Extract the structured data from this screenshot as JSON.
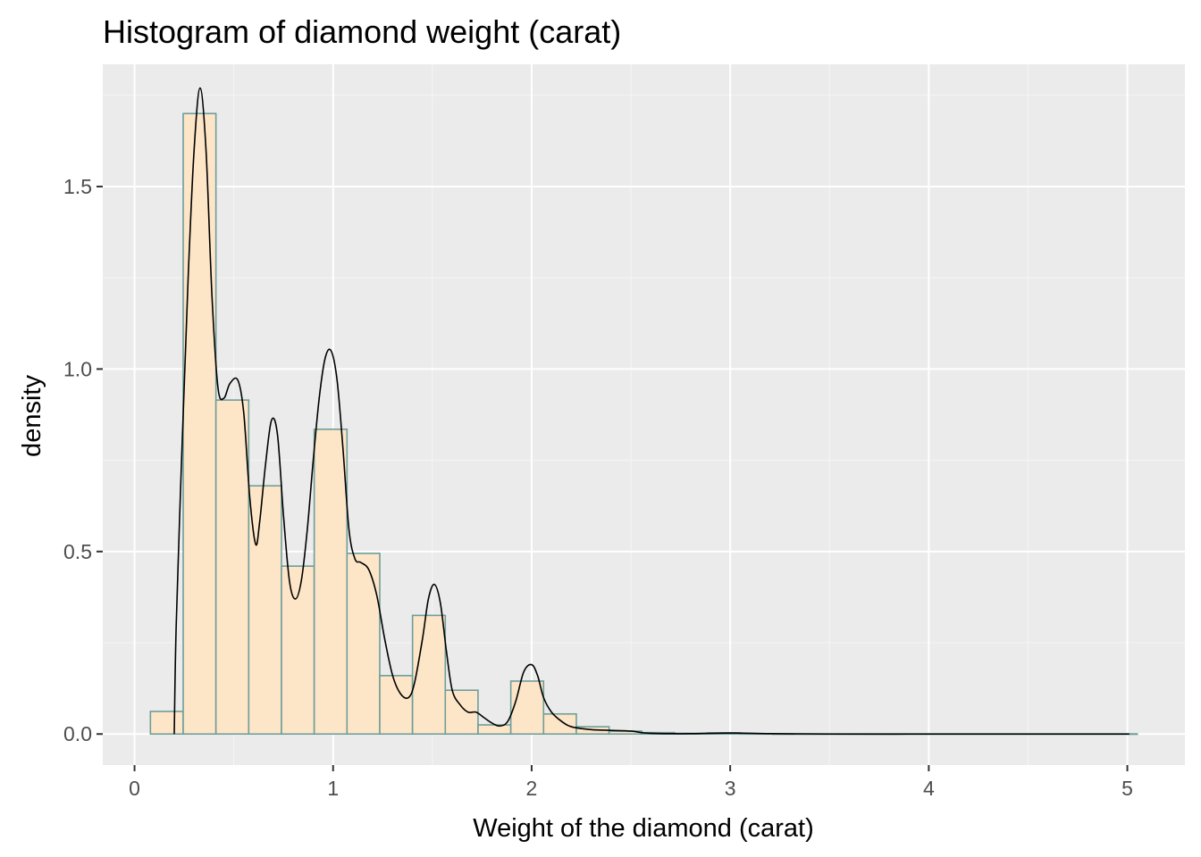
{
  "chart_data": {
    "type": "bar",
    "title": "Histogram of diamond weight (carat)",
    "xlabel": "Weight of the diamond (carat)",
    "ylabel": "density",
    "xlim": [
      -0.16,
      5.29
    ],
    "ylim": [
      -0.085,
      1.835
    ],
    "x_ticks": [
      0,
      1,
      2,
      3,
      4,
      5
    ],
    "x_tick_labels": [
      "0",
      "1",
      "2",
      "3",
      "4",
      "5"
    ],
    "y_ticks": [
      0.0,
      0.5,
      1.0,
      1.5
    ],
    "y_tick_labels": [
      "0.0",
      "0.5",
      "1.0",
      "1.5"
    ],
    "grid": true,
    "legend": "none",
    "bins": [
      {
        "x0": 0.08,
        "x1": 0.245,
        "density": 0.062
      },
      {
        "x0": 0.245,
        "x1": 0.41,
        "density": 1.7
      },
      {
        "x0": 0.41,
        "x1": 0.575,
        "density": 0.915
      },
      {
        "x0": 0.575,
        "x1": 0.74,
        "density": 0.68
      },
      {
        "x0": 0.74,
        "x1": 0.905,
        "density": 0.46
      },
      {
        "x0": 0.905,
        "x1": 1.07,
        "density": 0.835
      },
      {
        "x0": 1.07,
        "x1": 1.235,
        "density": 0.495
      },
      {
        "x0": 1.235,
        "x1": 1.4,
        "density": 0.16
      },
      {
        "x0": 1.4,
        "x1": 1.565,
        "density": 0.325
      },
      {
        "x0": 1.565,
        "x1": 1.73,
        "density": 0.12
      },
      {
        "x0": 1.73,
        "x1": 1.895,
        "density": 0.025
      },
      {
        "x0": 1.895,
        "x1": 2.06,
        "density": 0.145
      },
      {
        "x0": 2.06,
        "x1": 2.225,
        "density": 0.055
      },
      {
        "x0": 2.225,
        "x1": 2.39,
        "density": 0.02
      },
      {
        "x0": 2.39,
        "x1": 2.555,
        "density": 0.008
      },
      {
        "x0": 2.555,
        "x1": 2.72,
        "density": 0.004
      },
      {
        "x0": 2.72,
        "x1": 2.885,
        "density": 0.002
      },
      {
        "x0": 2.885,
        "x1": 3.05,
        "density": 0.003
      },
      {
        "x0": 3.05,
        "x1": 3.215,
        "density": 0.001
      },
      {
        "x0": 3.215,
        "x1": 5.05,
        "density": 0.0005
      }
    ],
    "density_curve": {
      "x": [
        0.2,
        0.21,
        0.24,
        0.27,
        0.3,
        0.33,
        0.36,
        0.39,
        0.42,
        0.45,
        0.48,
        0.52,
        0.55,
        0.58,
        0.61,
        0.63,
        0.66,
        0.69,
        0.72,
        0.75,
        0.78,
        0.81,
        0.84,
        0.87,
        0.9,
        0.93,
        0.96,
        0.99,
        1.02,
        1.05,
        1.08,
        1.11,
        1.14,
        1.18,
        1.22,
        1.26,
        1.3,
        1.34,
        1.38,
        1.41,
        1.45,
        1.48,
        1.51,
        1.54,
        1.57,
        1.6,
        1.64,
        1.68,
        1.72,
        1.76,
        1.8,
        1.84,
        1.88,
        1.92,
        1.96,
        2.0,
        2.03,
        2.06,
        2.1,
        2.15,
        2.2,
        2.3,
        2.4,
        2.5,
        2.55,
        2.6,
        2.7,
        2.8,
        3.0,
        3.2,
        3.5,
        4.0,
        4.5,
        5.01
      ],
      "y": [
        0.0,
        0.3,
        0.8,
        1.25,
        1.6,
        1.77,
        1.6,
        1.2,
        0.95,
        0.92,
        0.96,
        0.97,
        0.88,
        0.65,
        0.52,
        0.58,
        0.74,
        0.86,
        0.82,
        0.6,
        0.42,
        0.37,
        0.42,
        0.56,
        0.75,
        0.92,
        1.03,
        1.05,
        0.97,
        0.78,
        0.56,
        0.48,
        0.47,
        0.45,
        0.38,
        0.26,
        0.16,
        0.11,
        0.1,
        0.14,
        0.26,
        0.37,
        0.41,
        0.36,
        0.23,
        0.12,
        0.08,
        0.06,
        0.06,
        0.045,
        0.03,
        0.022,
        0.035,
        0.09,
        0.17,
        0.19,
        0.16,
        0.1,
        0.06,
        0.035,
        0.02,
        0.012,
        0.01,
        0.008,
        0.004,
        0.002,
        0.001,
        0.001,
        0.003,
        0.001,
        0.0,
        0.0,
        0.0,
        0.0
      ]
    },
    "colors": {
      "panel": "#ebebeb",
      "grid_major": "#ffffff",
      "grid_minor": "#f5f5f5",
      "bar_fill": "#fde5c8",
      "bar_stroke": "#6e9e9a",
      "curve": "#000000",
      "tick": "#333333"
    }
  }
}
